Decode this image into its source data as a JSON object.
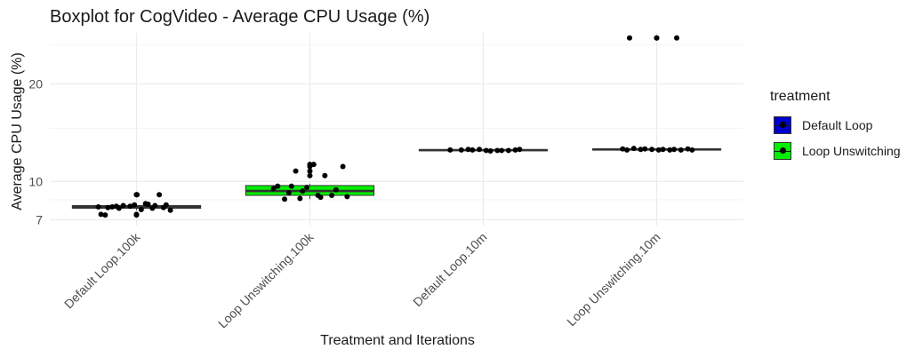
{
  "chart_data": {
    "type": "boxplot",
    "title": "Boxplot for CogVideo - Average CPU Usage (%)",
    "xlabel": "Treatment and Iterations",
    "ylabel": "Average CPU Usage (%)",
    "y_scale": "sqrt",
    "ylim": [
      6.6,
      26.6
    ],
    "y_ticks": [
      7,
      10,
      20
    ],
    "grid": true,
    "legend": {
      "title": "treatment",
      "position": "right",
      "entries": [
        {
          "label": "Default Loop",
          "color": "#0000CC"
        },
        {
          "label": "Loop Unswitching",
          "color": "#00EE00"
        }
      ]
    },
    "categories": [
      "Default Loop.100k",
      "Loop Unswitching.100k",
      "Default Loop.10m",
      "Loop Unswitching.10m"
    ],
    "boxes": [
      {
        "category": "Default Loop.100k",
        "treatment": "Default Loop",
        "whisker_low": 7.7,
        "q1": 7.85,
        "median": 7.95,
        "q3": 8.05,
        "whisker_high": 8.2,
        "outliers": [
          7.35,
          8.9,
          8.9,
          7.4
        ]
      },
      {
        "category": "Loop Unswitching.100k",
        "treatment": "Loop Unswitching",
        "whisker_low": 8.55,
        "q1": 8.85,
        "median": 9.2,
        "q3": 9.65,
        "whisker_high": 9.8,
        "outliers": [
          10.5,
          10.9,
          11.3,
          11.5
        ]
      },
      {
        "category": "Default Loop.10m",
        "treatment": "Default Loop",
        "whisker_low": 12.75,
        "q1": 12.78,
        "median": 12.83,
        "q3": 12.88,
        "whisker_high": 12.92,
        "outliers": []
      },
      {
        "category": "Loop Unswitching.10m",
        "treatment": "Loop Unswitching",
        "whisker_low": 12.8,
        "q1": 12.85,
        "median": 12.9,
        "q3": 12.95,
        "whisker_high": 13.0,
        "outliers": [
          25.9,
          25.9
        ]
      }
    ],
    "points": [
      [
        7.95,
        8.2,
        8.0,
        7.9,
        8.1,
        7.35,
        7.85,
        8.05,
        7.7,
        7.75,
        7.95,
        8.9,
        8.0,
        7.4,
        8.15,
        7.85,
        8.1,
        8.9,
        7.9,
        8.05
      ],
      [
        8.6,
        8.75,
        8.85,
        9.05,
        9.3,
        9.5,
        9.6,
        10.5,
        10.9,
        11.3,
        11.5,
        8.55,
        8.85,
        9.2,
        9.4,
        8.7,
        9.6
      ],
      [
        12.8,
        12.85,
        12.9,
        12.75,
        12.85,
        12.8,
        12.9,
        12.85,
        12.8,
        12.9,
        12.85,
        12.8
      ],
      [
        12.85,
        12.9,
        12.95,
        12.85,
        12.9,
        13.0,
        12.85,
        12.9,
        12.95,
        12.85,
        12.9,
        12.95,
        12.85,
        25.9,
        25.9
      ]
    ]
  }
}
